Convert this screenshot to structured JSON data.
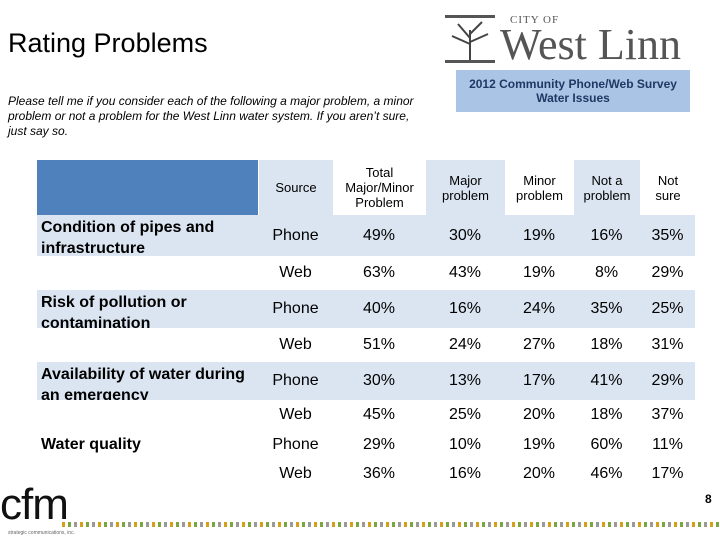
{
  "header": {
    "title": "Rating Problems",
    "question": "Please tell me if you consider each of the following a major problem, a minor problem or not a problem for the West Linn water system. If you aren’t sure, just say so.",
    "logo_small": "CITY OF",
    "logo_name": "West Linn",
    "survey_box": "2012 Community Phone/Web Survey Water Issues"
  },
  "table": {
    "columns": [
      "Source",
      "Total Major/Minor Problem",
      "Major problem",
      "Minor problem",
      "Not a problem",
      "Not sure"
    ],
    "groups": [
      {
        "label": "Condition of pipes and infrastructure",
        "rows": [
          {
            "source": "Phone",
            "values": [
              "49%",
              "30%",
              "19%",
              "16%",
              "35%"
            ]
          },
          {
            "source": "Web",
            "values": [
              "63%",
              "43%",
              "19%",
              "8%",
              "29%"
            ]
          }
        ]
      },
      {
        "label": "Risk of pollution or contamination",
        "rows": [
          {
            "source": "Phone",
            "values": [
              "40%",
              "16%",
              "24%",
              "35%",
              "25%"
            ]
          },
          {
            "source": "Web",
            "values": [
              "51%",
              "24%",
              "27%",
              "18%",
              "31%"
            ]
          }
        ]
      },
      {
        "label": "Availability of water during an emergency",
        "rows": [
          {
            "source": "Phone",
            "values": [
              "30%",
              "13%",
              "17%",
              "41%",
              "29%"
            ]
          },
          {
            "source": "Web",
            "values": [
              "45%",
              "25%",
              "20%",
              "18%",
              "37%"
            ]
          }
        ]
      },
      {
        "label": "Water quality",
        "rows": [
          {
            "source": "Phone",
            "values": [
              "29%",
              "10%",
              "19%",
              "60%",
              "11%"
            ]
          },
          {
            "source": "Web",
            "values": [
              "36%",
              "16%",
              "20%",
              "46%",
              "17%"
            ]
          }
        ]
      }
    ]
  },
  "footer": {
    "brand": "cfm",
    "tagline": "strategic communications, inc.",
    "page": "8"
  }
}
